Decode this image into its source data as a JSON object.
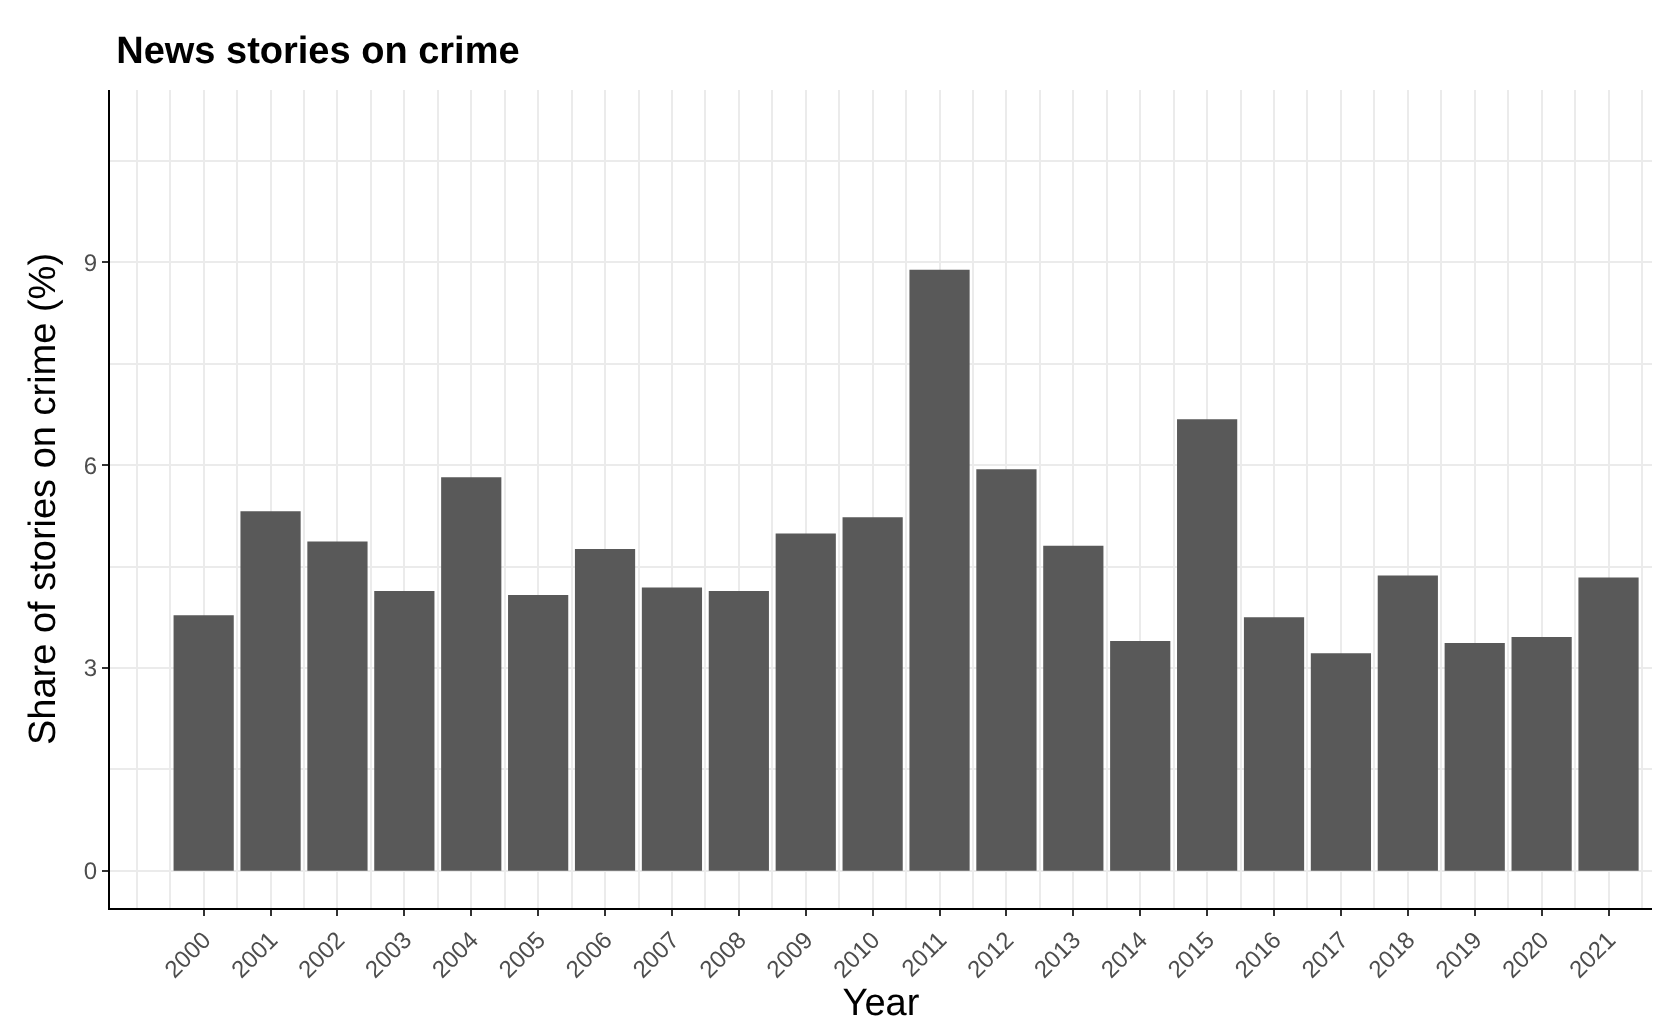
{
  "chart_data": {
    "type": "bar",
    "title": "News stories on crime",
    "xlabel": "Year",
    "ylabel": "Share of stories on crime (%)",
    "categories": [
      "2000",
      "2001",
      "2002",
      "2003",
      "2004",
      "2005",
      "2006",
      "2007",
      "2008",
      "2009",
      "2010",
      "2011",
      "2012",
      "2013",
      "2014",
      "2015",
      "2016",
      "2017",
      "2018",
      "2019",
      "2020",
      "2021"
    ],
    "values": [
      3.78,
      5.32,
      4.87,
      4.14,
      5.82,
      4.08,
      4.76,
      4.19,
      4.14,
      4.99,
      5.23,
      8.89,
      5.94,
      4.81,
      3.4,
      6.68,
      3.75,
      3.22,
      4.37,
      3.37,
      3.46,
      4.34
    ],
    "color": "#595959",
    "ylim": [
      -0.55,
      11.55
    ],
    "yticks": [
      0,
      3,
      6,
      9
    ],
    "grid": true
  }
}
